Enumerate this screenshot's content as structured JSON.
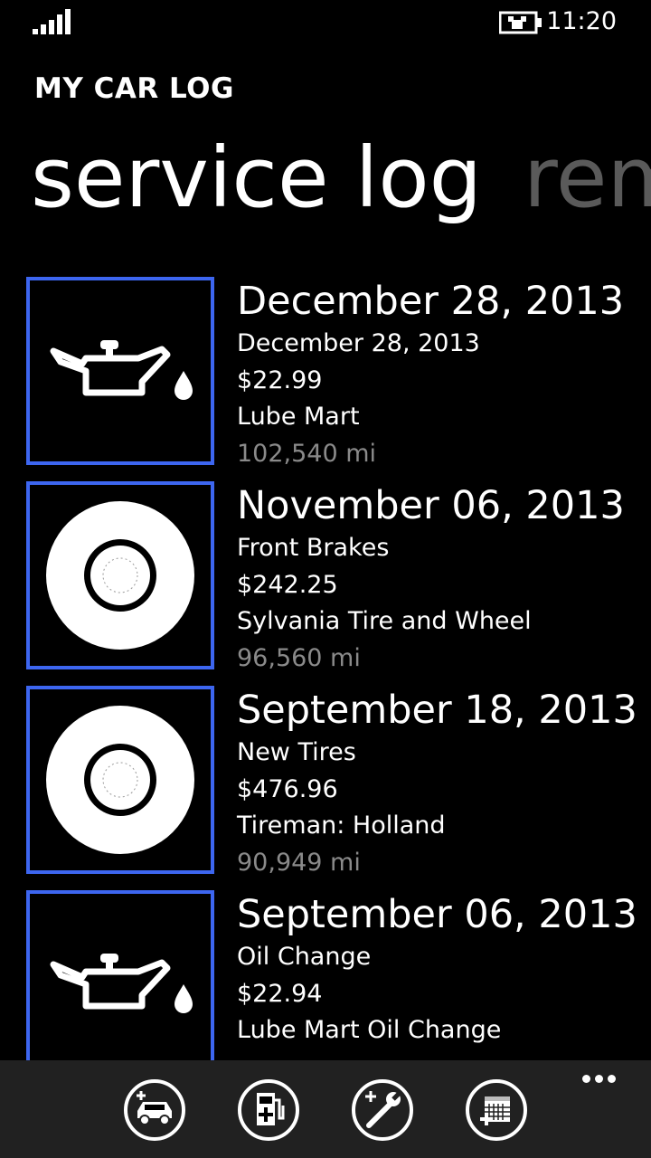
{
  "status_bar": {
    "time": "11:20",
    "signal_icon": "signal-strength-icon",
    "battery_icon": "battery-charging-icon"
  },
  "app": {
    "title": "MY CAR LOG"
  },
  "pivot": {
    "tabs": [
      "service log",
      "rem"
    ]
  },
  "colors": {
    "accent": "#3d66f0",
    "background": "#000000",
    "appbar": "#212121",
    "secondary_text": "#8a8a8a"
  },
  "service_log": [
    {
      "icon": "oil-can-icon",
      "date": "December 28, 2013",
      "title": "December 28, 2013",
      "cost": "$22.99",
      "vendor": "Lube Mart",
      "mileage": "102,540 mi"
    },
    {
      "icon": "brake-disc-icon",
      "date": "November 06, 2013",
      "title": "Front Brakes",
      "cost": "$242.25",
      "vendor": "Sylvania Tire and Wheel",
      "mileage": "96,560 mi"
    },
    {
      "icon": "tire-icon",
      "date": "September 18, 2013",
      "title": "New Tires",
      "cost": "$476.96",
      "vendor": "Tireman: Holland",
      "mileage": "90,949 mi"
    },
    {
      "icon": "oil-can-icon",
      "date": "September 06, 2013",
      "title": "Oil Change",
      "cost": "$22.94",
      "vendor": "Lube Mart Oil Change",
      "mileage": ""
    }
  ],
  "app_bar": {
    "buttons": [
      "add-vehicle-icon",
      "add-fuel-icon",
      "add-service-icon",
      "add-reminder-icon"
    ],
    "more_icon": "ellipsis-icon"
  }
}
